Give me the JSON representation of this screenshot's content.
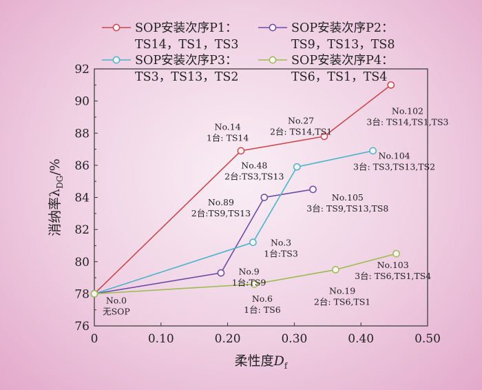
{
  "chart_data": {
    "type": "line",
    "xlabel": "柔性度",
    "xlabel_symbol": "D",
    "xlabel_sub": "f",
    "ylabel": "消纳率λ",
    "ylabel_sub": "DG",
    "ylabel_unit": "/%",
    "xlim": [
      0,
      0.5
    ],
    "ylim": [
      76,
      92
    ],
    "xticks": [
      "0",
      "0.10",
      "0.20",
      "0.30",
      "0.40",
      "0.50"
    ],
    "yticks": [
      "76",
      "78",
      "80",
      "82",
      "84",
      "86",
      "88",
      "90",
      "92"
    ],
    "grid": false,
    "legend_position": "top",
    "series": [
      {
        "name": "SOP安装次序P1：",
        "name2": "TS14，TS1，TS3",
        "color": "#c8484e",
        "x": [
          0,
          0.22,
          0.345,
          0.445
        ],
        "y": [
          78.0,
          86.9,
          87.8,
          91.0
        ]
      },
      {
        "name": "SOP安装次序P2：",
        "name2": "TS9，TS13，TS8",
        "color": "#6a4aa6",
        "x": [
          0,
          0.19,
          0.255,
          0.328
        ],
        "y": [
          78.0,
          79.3,
          84.0,
          84.5
        ]
      },
      {
        "name": "SOP安装次序P3：",
        "name2": "TS3，TS13，TS2",
        "color": "#4ab3c8",
        "x": [
          0,
          0.238,
          0.304,
          0.418
        ],
        "y": [
          78.0,
          81.2,
          85.9,
          86.9
        ]
      },
      {
        "name": "SOP安装次序P4：",
        "name2": "TS6，TS1，TS4",
        "color": "#9bbb50",
        "x": [
          0,
          0.24,
          0.362,
          0.453
        ],
        "y": [
          78.0,
          78.6,
          79.5,
          80.5
        ]
      }
    ],
    "annotations": [
      {
        "line1": "No.0",
        "line2": "无SOP",
        "x": 0.033,
        "y": 77.4
      },
      {
        "line1": "No.14",
        "line2": "1台: TS14",
        "x": 0.2,
        "y": 88.2
      },
      {
        "line1": "No.27",
        "line2": "2台: TS14,TS1",
        "x": 0.31,
        "y": 88.6
      },
      {
        "line1": "No.102",
        "line2": "3台: TS14,TS1,TS3",
        "x": 0.47,
        "y": 89.2
      },
      {
        "line1": "No.48",
        "line2": "2台:TS3,TS13",
        "x": 0.24,
        "y": 85.8
      },
      {
        "line1": "No.104",
        "line2": "3台: TS3,TS13,TS2",
        "x": 0.45,
        "y": 86.4
      },
      {
        "line1": "No.89",
        "line2": "2台:TS9,TS13",
        "x": 0.19,
        "y": 83.5
      },
      {
        "line1": "No.105",
        "line2": "3台: TS9,TS13,TS8",
        "x": 0.38,
        "y": 83.8
      },
      {
        "line1": "No.3",
        "line2": "1台:TS3",
        "x": 0.28,
        "y": 81.0
      },
      {
        "line1": "No.9",
        "line2": "1台:TS9",
        "x": 0.232,
        "y": 79.2
      },
      {
        "line1": "No.6",
        "line2": "1台: TS6",
        "x": 0.252,
        "y": 77.5
      },
      {
        "line1": "No.19",
        "line2": "2台: TS6,TS1",
        "x": 0.372,
        "y": 78.0
      },
      {
        "line1": "No.103",
        "line2": "3台: TS6,TS1,TS4",
        "x": 0.448,
        "y": 79.6
      }
    ]
  }
}
